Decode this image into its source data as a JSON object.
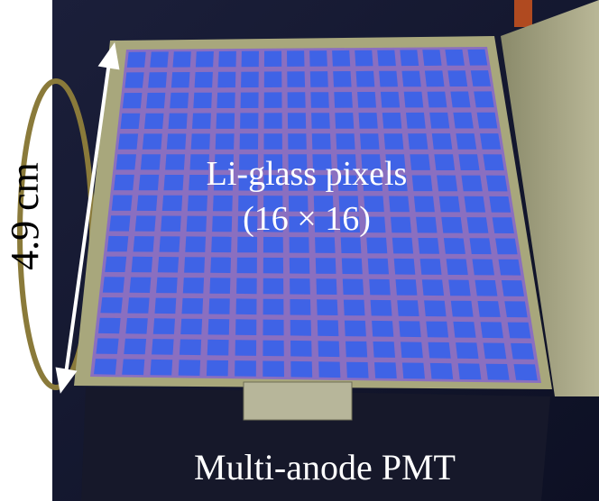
{
  "labels": {
    "length": "4.9 cm",
    "pixels_title": "Li-glass pixels",
    "pixels_count": "(16 × 16)",
    "device": "Multi-anode PMT"
  }
}
